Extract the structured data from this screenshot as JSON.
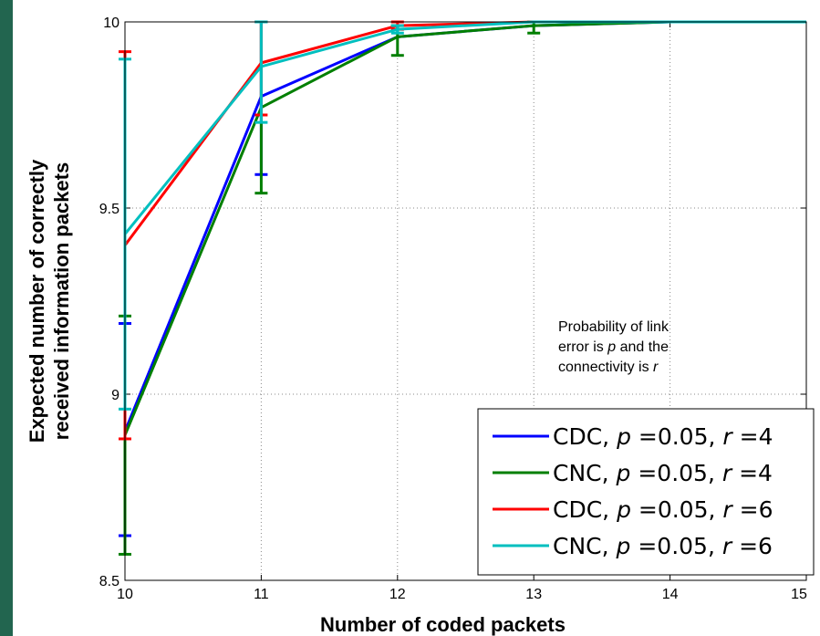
{
  "theme": {
    "background": "#1f5b45",
    "plot_bg": "#ffffff"
  },
  "annotation": {
    "lines": [
      [
        {
          "t": "Probability of link",
          "i": false
        }
      ],
      [
        {
          "t": "error is ",
          "i": false
        },
        {
          "t": "p",
          "i": true
        },
        {
          "t": " and the",
          "i": false
        }
      ],
      [
        {
          "t": "connectivity is ",
          "i": false
        },
        {
          "t": "r",
          "i": true
        }
      ]
    ]
  },
  "chart_data": {
    "type": "line",
    "xlabel": "Number of coded packets",
    "ylabel_lines": [
      "Expected number of correctly",
      "received information packets"
    ],
    "xlim": [
      10,
      15
    ],
    "ylim": [
      8.5,
      10
    ],
    "xticks": [
      10,
      11,
      12,
      13,
      14,
      15
    ],
    "yticks": [
      8.5,
      9,
      9.5,
      10
    ],
    "grid": true,
    "legend_position": "bottom-right",
    "series": [
      {
        "name_parts": [
          {
            "t": "CDC, ",
            "i": false
          },
          {
            "t": "p",
            "i": true
          },
          {
            "t": " =0.05, ",
            "i": false
          },
          {
            "t": "r",
            "i": true
          },
          {
            "t": " =4",
            "i": false
          }
        ],
        "color": "#0000ff",
        "x": [
          10,
          11,
          12,
          13,
          14,
          15
        ],
        "y": [
          8.9,
          9.8,
          9.96,
          9.99,
          10.0,
          10.0
        ],
        "err_low": [
          8.62,
          9.59,
          9.96,
          9.99,
          10.0,
          10.0
        ],
        "err_high": [
          9.19,
          10.0,
          9.96,
          9.99,
          10.0,
          10.0
        ]
      },
      {
        "name_parts": [
          {
            "t": "CNC, ",
            "i": false
          },
          {
            "t": "p",
            "i": true
          },
          {
            "t": " =0.05, ",
            "i": false
          },
          {
            "t": "r",
            "i": true
          },
          {
            "t": " =4",
            "i": false
          }
        ],
        "color": "#007f00",
        "x": [
          10,
          11,
          12,
          13,
          14,
          15
        ],
        "y": [
          8.89,
          9.77,
          9.96,
          9.99,
          10.0,
          10.0
        ],
        "err_low": [
          8.57,
          9.54,
          9.91,
          9.97,
          10.0,
          10.0
        ],
        "err_high": [
          9.21,
          10.0,
          9.99,
          10.0,
          10.0,
          10.0
        ]
      },
      {
        "name_parts": [
          {
            "t": "CDC, ",
            "i": false
          },
          {
            "t": "p",
            "i": true
          },
          {
            "t": " =0.05, ",
            "i": false
          },
          {
            "t": "r",
            "i": true
          },
          {
            "t": " =6",
            "i": false
          }
        ],
        "color": "#ff0000",
        "x": [
          10,
          11,
          12,
          13,
          14,
          15
        ],
        "y": [
          9.4,
          9.89,
          9.99,
          10.0,
          10.0,
          10.0
        ],
        "err_low": [
          8.88,
          9.75,
          9.98,
          10.0,
          10.0,
          10.0
        ],
        "err_high": [
          9.92,
          10.0,
          10.0,
          10.0,
          10.0,
          10.0
        ]
      },
      {
        "name_parts": [
          {
            "t": "CNC, ",
            "i": false
          },
          {
            "t": "p",
            "i": true
          },
          {
            "t": " =0.05, ",
            "i": false
          },
          {
            "t": "r",
            "i": true
          },
          {
            "t": " =6",
            "i": false
          }
        ],
        "color": "#00bfbf",
        "x": [
          10,
          11,
          12,
          13,
          14,
          15
        ],
        "y": [
          9.43,
          9.88,
          9.98,
          10.0,
          10.0,
          10.0
        ],
        "err_low": [
          8.96,
          9.73,
          9.97,
          10.0,
          10.0,
          10.0
        ],
        "err_high": [
          9.9,
          10.0,
          9.99,
          10.0,
          10.0,
          10.0
        ]
      }
    ]
  }
}
